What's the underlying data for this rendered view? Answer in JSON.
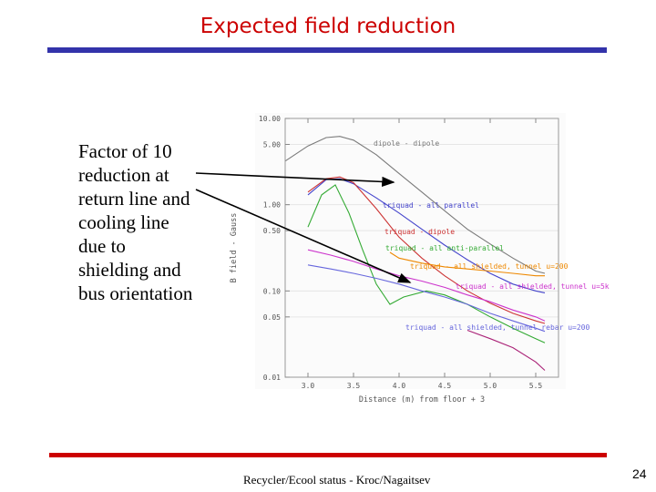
{
  "slide": {
    "title": "Expected field reduction",
    "bullet_lines": [
      "Factor of 10",
      "reduction at",
      "return line and",
      "cooling line",
      "due to",
      "shielding and",
      "bus orientation"
    ],
    "footer": "Recycler/Ecool status - Kroc/Nagaitsev",
    "page_number": "24"
  },
  "chart_data": {
    "type": "line",
    "xlabel": "Distance (m) from floor + 3",
    "ylabel": "B field - Gauss",
    "x_ticks": [
      "3.0",
      "3.5",
      "4.0",
      "4.5",
      "5.0",
      "5.5"
    ],
    "y_ticks": [
      "10.00",
      "5.00",
      "1.00",
      "0.50",
      "0.10",
      "0.05",
      "0.01"
    ],
    "xlim": [
      2.75,
      5.75
    ],
    "ylim": [
      0.01,
      10.0
    ],
    "y_scale": "log",
    "series": [
      {
        "name": "dipole - dipole",
        "color": "#7a7a7a",
        "x": [
          2.75,
          3.0,
          3.2,
          3.35,
          3.5,
          3.75,
          4.0,
          4.25,
          4.5,
          4.75,
          5.0,
          5.25,
          5.5,
          5.6
        ],
        "y": [
          3.2,
          4.8,
          6.0,
          6.2,
          5.6,
          3.8,
          2.3,
          1.4,
          0.85,
          0.52,
          0.35,
          0.24,
          0.17,
          0.16
        ]
      },
      {
        "name": "triquad - all parallel",
        "color": "#4444cc",
        "x": [
          3.0,
          3.2,
          3.35,
          3.5,
          3.75,
          4.0,
          4.25,
          4.5,
          4.75,
          5.0,
          5.25,
          5.5,
          5.6
        ],
        "y": [
          1.3,
          1.95,
          2.0,
          1.75,
          1.2,
          0.8,
          0.52,
          0.34,
          0.23,
          0.16,
          0.12,
          0.1,
          0.095
        ]
      },
      {
        "name": "triquad - dipole",
        "color": "#cc3333",
        "x": [
          3.0,
          3.2,
          3.35,
          3.5,
          3.75,
          4.0,
          4.25,
          4.5,
          4.75,
          5.0,
          5.25,
          5.5,
          5.6
        ],
        "y": [
          1.4,
          2.0,
          2.1,
          1.8,
          0.9,
          0.42,
          0.24,
          0.15,
          0.1,
          0.072,
          0.055,
          0.045,
          0.042
        ]
      },
      {
        "name": "triquad - all anti-parallel",
        "color": "#33aa33",
        "x": [
          3.0,
          3.15,
          3.3,
          3.45,
          3.6,
          3.75,
          3.9,
          4.05,
          4.3,
          4.5,
          4.75,
          5.0,
          5.25,
          5.5,
          5.6
        ],
        "y": [
          0.55,
          1.3,
          1.7,
          0.8,
          0.3,
          0.12,
          0.07,
          0.085,
          0.1,
          0.09,
          0.07,
          0.05,
          0.037,
          0.028,
          0.025
        ]
      },
      {
        "name": "triquad - all shielded, tunnel u=200",
        "color": "#ee8800",
        "x": [
          3.9,
          4.0,
          4.25,
          4.5,
          4.75,
          5.0,
          5.25,
          5.5,
          5.6
        ],
        "y": [
          0.28,
          0.24,
          0.21,
          0.19,
          0.18,
          0.17,
          0.16,
          0.15,
          0.15
        ]
      },
      {
        "name": "triquad - all shielded, tunnel u=5k",
        "color": "#cc33cc",
        "x": [
          3.0,
          3.25,
          3.5,
          3.75,
          4.0,
          4.25,
          4.5,
          4.75,
          5.0,
          5.25,
          5.5,
          5.6
        ],
        "y": [
          0.3,
          0.26,
          0.22,
          0.18,
          0.15,
          0.13,
          0.11,
          0.09,
          0.075,
          0.06,
          0.05,
          0.045
        ]
      },
      {
        "name": "triquad - all shielded, tunnel rebar u=200",
        "color": "#6666dd",
        "x": [
          3.0,
          3.25,
          3.5,
          3.75,
          4.0,
          4.25,
          4.5,
          4.75,
          5.0,
          5.25,
          5.5,
          5.6
        ],
        "y": [
          0.2,
          0.18,
          0.16,
          0.14,
          0.12,
          0.1,
          0.085,
          0.07,
          0.055,
          0.045,
          0.037,
          0.034
        ]
      },
      {
        "name": "",
        "color": "#aa2277",
        "x": [
          4.75,
          5.0,
          5.25,
          5.5,
          5.6
        ],
        "y": [
          0.035,
          0.028,
          0.022,
          0.015,
          0.012
        ]
      }
    ]
  }
}
